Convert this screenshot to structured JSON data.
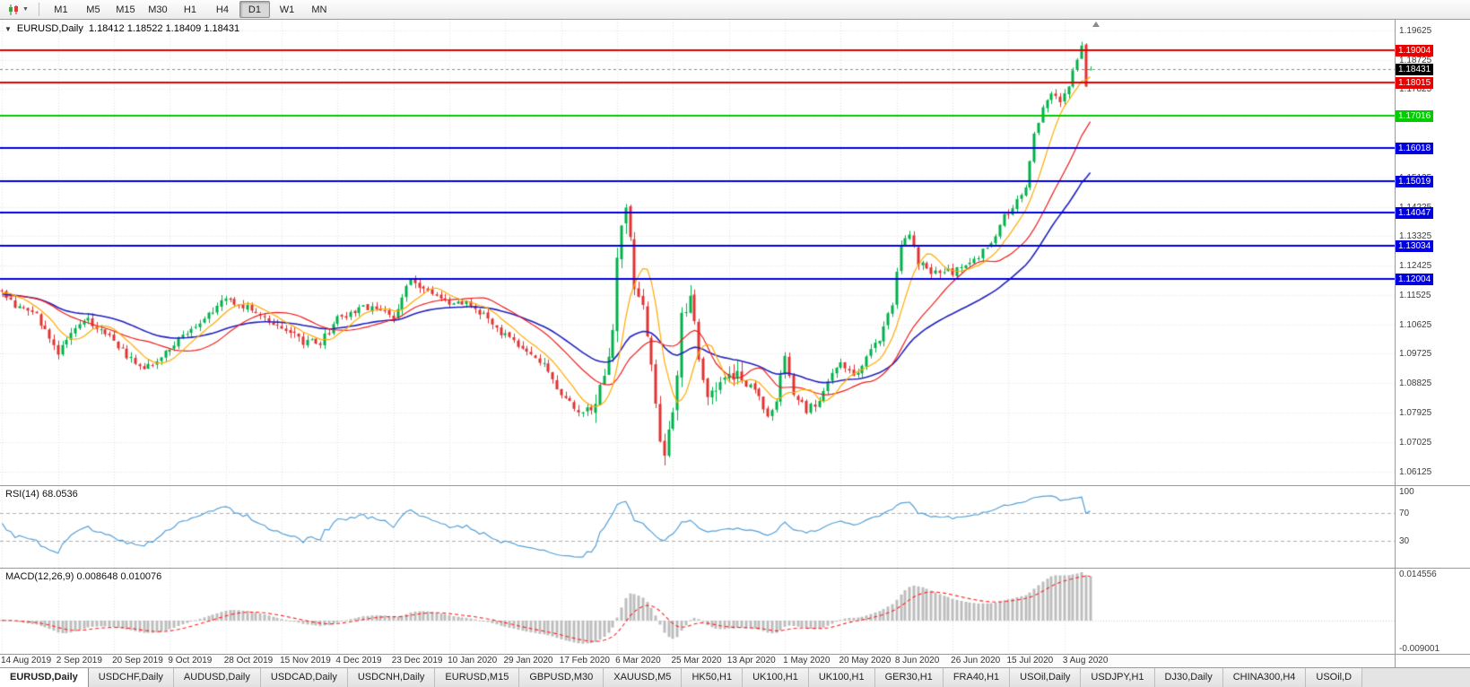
{
  "toolbar": {
    "timeframes": [
      {
        "label": "M1",
        "active": false
      },
      {
        "label": "M5",
        "active": false
      },
      {
        "label": "M15",
        "active": false
      },
      {
        "label": "M30",
        "active": false
      },
      {
        "label": "H1",
        "active": false
      },
      {
        "label": "H4",
        "active": false
      },
      {
        "label": "D1",
        "active": true
      },
      {
        "label": "W1",
        "active": false
      },
      {
        "label": "MN",
        "active": false
      }
    ]
  },
  "chart": {
    "title": "EURUSD,Daily",
    "ohlc_text": "1.18412 1.18522 1.18409 1.18431",
    "current_price_label": "1.18431",
    "price_axis_ticks": [
      "1.19625",
      "1.18725",
      "1.17825",
      "1.16925",
      "1.16025",
      "1.15125",
      "1.14225",
      "1.13325",
      "1.12425",
      "1.11525",
      "1.10625",
      "1.09725",
      "1.08825",
      "1.07925",
      "1.07025",
      "1.06125"
    ],
    "date_axis": [
      "14 Aug 2019",
      "2 Sep 2019",
      "20 Sep 2019",
      "9 Oct 2019",
      "28 Oct 2019",
      "15 Nov 2019",
      "4 Dec 2019",
      "23 Dec 2019",
      "10 Jan 2020",
      "29 Jan 2020",
      "17 Feb 2020",
      "6 Mar 2020",
      "25 Mar 2020",
      "13 Apr 2020",
      "1 May 2020",
      "20 May 2020",
      "8 Jun 2020",
      "26 Jun 2020",
      "15 Jul 2020",
      "3 Aug 2020"
    ]
  },
  "rsi": {
    "label": "RSI(14) 68.0536",
    "axis_labels": [
      "100",
      "70",
      "30"
    ]
  },
  "macd": {
    "label": "MACD(12,26,9) 0.008648 0.010076",
    "axis_labels": [
      "0.014556",
      "-0.009001"
    ]
  },
  "tabs": [
    {
      "label": "EURUSD,Daily",
      "active": true
    },
    {
      "label": "USDCHF,Daily",
      "active": false
    },
    {
      "label": "AUDUSD,Daily",
      "active": false
    },
    {
      "label": "USDCAD,Daily",
      "active": false
    },
    {
      "label": "USDCNH,Daily",
      "active": false
    },
    {
      "label": "EURUSD,M15",
      "active": false
    },
    {
      "label": "GBPUSD,M30",
      "active": false
    },
    {
      "label": "XAUUSD,M5",
      "active": false
    },
    {
      "label": "HK50,H1",
      "active": false
    },
    {
      "label": "UK100,H1",
      "active": false
    },
    {
      "label": "UK100,H1",
      "active": false
    },
    {
      "label": "GER30,H1",
      "active": false
    },
    {
      "label": "FRA40,H1",
      "active": false
    },
    {
      "label": "USOil,Daily",
      "active": false
    },
    {
      "label": "USDJPY,H1",
      "active": false
    },
    {
      "label": "DJ30,Daily",
      "active": false
    },
    {
      "label": "CHINA300,H4",
      "active": false
    },
    {
      "label": "USOil,D",
      "active": false
    }
  ],
  "chart_data": {
    "type": "candlestick",
    "symbol": "EURUSD",
    "timeframe": "Daily",
    "days": 254,
    "x_labels_every_days": 13,
    "y_range": [
      1.057,
      1.1995
    ],
    "current": {
      "open": 1.18412,
      "high": 1.18522,
      "low": 1.18409,
      "close": 1.18431
    },
    "close_keypoints": [
      [
        0,
        1.1165
      ],
      [
        4,
        1.111
      ],
      [
        8,
        1.109
      ],
      [
        13,
        1.0975
      ],
      [
        16,
        1.1035
      ],
      [
        20,
        1.1075
      ],
      [
        26,
        1.101
      ],
      [
        30,
        1.0955
      ],
      [
        33,
        1.0925
      ],
      [
        39,
        1.0985
      ],
      [
        44,
        1.1055
      ],
      [
        48,
        1.1095
      ],
      [
        52,
        1.1145
      ],
      [
        57,
        1.1115
      ],
      [
        61,
        1.1075
      ],
      [
        65,
        1.105
      ],
      [
        70,
        1.101
      ],
      [
        74,
        1.1005
      ],
      [
        78,
        1.108
      ],
      [
        83,
        1.111
      ],
      [
        87,
        1.112
      ],
      [
        91,
        1.1085
      ],
      [
        95,
        1.12
      ],
      [
        99,
        1.117
      ],
      [
        104,
        1.112
      ],
      [
        108,
        1.1135
      ],
      [
        112,
        1.109
      ],
      [
        117,
        1.1025
      ],
      [
        121,
        1.0985
      ],
      [
        126,
        1.0945
      ],
      [
        130,
        1.084
      ],
      [
        134,
        1.0795
      ],
      [
        137,
        1.0805
      ],
      [
        140,
        1.0885
      ],
      [
        142,
        1.103
      ],
      [
        143,
        1.1285
      ],
      [
        145,
        1.144
      ],
      [
        147,
        1.118
      ],
      [
        149,
        1.1105
      ],
      [
        151,
        1.092
      ],
      [
        153,
        1.071
      ],
      [
        154,
        1.0655
      ],
      [
        156,
        1.0795
      ],
      [
        157,
        1.0885
      ],
      [
        158,
        1.108
      ],
      [
        160,
        1.114
      ],
      [
        162,
        1.0965
      ],
      [
        164,
        1.086
      ],
      [
        166,
        1.0855
      ],
      [
        169,
        1.0915
      ],
      [
        172,
        1.089
      ],
      [
        175,
        1.0865
      ],
      [
        178,
        1.0775
      ],
      [
        180,
        1.082
      ],
      [
        182,
        1.0975
      ],
      [
        184,
        1.0845
      ],
      [
        187,
        1.08
      ],
      [
        190,
        1.0825
      ],
      [
        193,
        1.092
      ],
      [
        195,
        1.0955
      ],
      [
        198,
        1.0905
      ],
      [
        201,
        1.0965
      ],
      [
        204,
        1.1015
      ],
      [
        207,
        1.113
      ],
      [
        209,
        1.1295
      ],
      [
        211,
        1.134
      ],
      [
        213,
        1.1255
      ],
      [
        216,
        1.1215
      ],
      [
        219,
        1.123
      ],
      [
        221,
        1.122
      ],
      [
        224,
        1.125
      ],
      [
        227,
        1.127
      ],
      [
        230,
        1.131
      ],
      [
        233,
        1.1395
      ],
      [
        235,
        1.1415
      ],
      [
        238,
        1.148
      ],
      [
        240,
        1.165
      ],
      [
        242,
        1.172
      ],
      [
        244,
        1.1775
      ],
      [
        246,
        1.1745
      ],
      [
        247,
        1.176
      ],
      [
        249,
        1.1835
      ],
      [
        251,
        1.1905
      ],
      [
        252,
        1.179
      ],
      [
        253,
        1.18431
      ]
    ],
    "noise": {
      "seed": 42,
      "base_amp": 0.0011,
      "crash_amp": 0.0022,
      "crash_range": [
        138,
        172
      ],
      "wick_amp": 0.0016,
      "wick_crash_amp": 0.0034
    },
    "moving_averages": [
      {
        "type": "sma",
        "period": 8,
        "color": "#ffaa00"
      },
      {
        "type": "sma",
        "period": 20,
        "color": "#f01e1e"
      },
      {
        "type": "ema",
        "period": 40,
        "color": "#2121bd"
      }
    ],
    "horizontal_levels": [
      {
        "value": 1.19004,
        "color": "#e60000"
      },
      {
        "value": 1.18015,
        "color": "#e60000"
      },
      {
        "value": 1.17016,
        "color": "#00cc00"
      },
      {
        "value": 1.16018,
        "color": "#0000e0"
      },
      {
        "value": 1.15019,
        "color": "#0000e0"
      },
      {
        "value": 1.14047,
        "color": "#0000e0"
      },
      {
        "value": 1.13034,
        "color": "#0000e0"
      },
      {
        "value": 1.12004,
        "color": "#0000e0"
      }
    ],
    "indicators": [
      {
        "name": "RSI",
        "period": 14,
        "value": 68.0536,
        "range": [
          0,
          100
        ],
        "levels": [
          70,
          30
        ],
        "color": "#559fd6"
      },
      {
        "name": "MACD",
        "fast": 12,
        "slow": 26,
        "signal_period": 9,
        "value": 0.008648,
        "signal_value": 0.010076,
        "range": [
          -0.009001,
          0.014556
        ],
        "histogram_color": "#bdbdbd",
        "signal_color": "#ff2222"
      }
    ]
  }
}
